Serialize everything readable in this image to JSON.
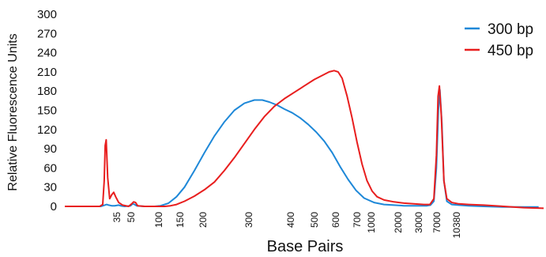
{
  "chart_data": {
    "type": "line",
    "xlabel": "Base Pairs",
    "ylabel": "Relative Fluorescence Units",
    "ylim": [
      0,
      300
    ],
    "yticks": [
      0,
      30,
      60,
      90,
      120,
      150,
      180,
      210,
      240,
      270,
      300
    ],
    "xticks": [
      "35",
      "50",
      "100",
      "150",
      "200",
      "300",
      "400",
      "500",
      "600",
      "700",
      "1000",
      "2000",
      "3000",
      "7000",
      "10380"
    ],
    "grid": false,
    "legend_position": "top-right",
    "series": [
      {
        "name": "300 bp",
        "color": "#1e88d8",
        "points": [
          [
            0,
            0
          ],
          [
            1,
            0
          ],
          [
            2,
            0
          ],
          [
            3,
            0
          ],
          [
            3.6,
            0
          ],
          [
            4.0,
            2
          ],
          [
            4.2,
            3
          ],
          [
            4.4,
            2
          ],
          [
            4.7,
            1
          ],
          [
            5.0,
            1
          ],
          [
            5.4,
            2
          ],
          [
            5.6,
            1
          ],
          [
            6.0,
            0
          ],
          [
            6.6,
            1
          ],
          [
            6.8,
            4
          ],
          [
            7.0,
            3
          ],
          [
            7.2,
            1
          ],
          [
            8.0,
            0
          ],
          [
            9.0,
            0
          ],
          [
            9.6,
            1
          ],
          [
            10.4,
            5
          ],
          [
            11.2,
            15
          ],
          [
            12.0,
            30
          ],
          [
            13.0,
            56
          ],
          [
            14.0,
            84
          ],
          [
            15.0,
            110
          ],
          [
            16.0,
            132
          ],
          [
            17.0,
            150
          ],
          [
            18.0,
            161
          ],
          [
            19.0,
            166
          ],
          [
            19.8,
            166
          ],
          [
            20.5,
            163
          ],
          [
            21.3,
            158
          ],
          [
            22.0,
            152
          ],
          [
            22.8,
            146
          ],
          [
            23.6,
            138
          ],
          [
            24.4,
            128
          ],
          [
            25.2,
            116
          ],
          [
            26.0,
            102
          ],
          [
            26.8,
            84
          ],
          [
            27.6,
            62
          ],
          [
            28.4,
            42
          ],
          [
            29.2,
            25
          ],
          [
            30.0,
            13
          ],
          [
            31.0,
            6
          ],
          [
            32.0,
            3
          ],
          [
            33.0,
            2
          ],
          [
            34.0,
            1
          ],
          [
            35.0,
            1
          ],
          [
            36.3,
            1
          ],
          [
            36.65,
            2
          ],
          [
            37.0,
            8
          ],
          [
            37.25,
            60
          ],
          [
            37.45,
            150
          ],
          [
            37.6,
            182
          ],
          [
            37.8,
            130
          ],
          [
            38.0,
            40
          ],
          [
            38.3,
            8
          ],
          [
            38.8,
            3
          ],
          [
            39.5,
            2
          ],
          [
            40.5,
            1
          ],
          [
            42.0,
            0
          ],
          [
            44.0,
            -1
          ],
          [
            46.0,
            -1
          ],
          [
            47.5,
            -1
          ]
        ]
      },
      {
        "name": "450 bp",
        "color": "#e81e1e",
        "points": [
          [
            0,
            0
          ],
          [
            1,
            0
          ],
          [
            2,
            0
          ],
          [
            3,
            0
          ],
          [
            3.5,
            0
          ],
          [
            3.8,
            3
          ],
          [
            3.95,
            40
          ],
          [
            4.05,
            95
          ],
          [
            4.15,
            104
          ],
          [
            4.3,
            45
          ],
          [
            4.5,
            12
          ],
          [
            4.7,
            18
          ],
          [
            4.9,
            22
          ],
          [
            5.1,
            15
          ],
          [
            5.4,
            6
          ],
          [
            5.8,
            2
          ],
          [
            6.4,
            0
          ],
          [
            6.7,
            4
          ],
          [
            6.9,
            7
          ],
          [
            7.1,
            6
          ],
          [
            7.3,
            1
          ],
          [
            8.0,
            0
          ],
          [
            9.0,
            0
          ],
          [
            10.0,
            0
          ],
          [
            10.6,
            1
          ],
          [
            11.2,
            3
          ],
          [
            12.0,
            8
          ],
          [
            13.0,
            16
          ],
          [
            14.0,
            26
          ],
          [
            15.0,
            38
          ],
          [
            16.0,
            56
          ],
          [
            17.0,
            76
          ],
          [
            18.0,
            98
          ],
          [
            19.0,
            120
          ],
          [
            20.0,
            140
          ],
          [
            21.0,
            156
          ],
          [
            22.0,
            168
          ],
          [
            23.0,
            178
          ],
          [
            24.0,
            188
          ],
          [
            25.0,
            198
          ],
          [
            26.0,
            206
          ],
          [
            26.5,
            210
          ],
          [
            27.0,
            212
          ],
          [
            27.4,
            210
          ],
          [
            27.8,
            200
          ],
          [
            28.3,
            172
          ],
          [
            28.8,
            138
          ],
          [
            29.3,
            100
          ],
          [
            29.8,
            66
          ],
          [
            30.3,
            40
          ],
          [
            30.8,
            24
          ],
          [
            31.3,
            15
          ],
          [
            32.0,
            10
          ],
          [
            33.0,
            7
          ],
          [
            34.0,
            5
          ],
          [
            35.0,
            4
          ],
          [
            36.0,
            3
          ],
          [
            36.6,
            3
          ],
          [
            37.0,
            12
          ],
          [
            37.25,
            80
          ],
          [
            37.42,
            172
          ],
          [
            37.55,
            188
          ],
          [
            37.75,
            140
          ],
          [
            38.0,
            40
          ],
          [
            38.3,
            12
          ],
          [
            38.8,
            6
          ],
          [
            39.5,
            4
          ],
          [
            40.5,
            3
          ],
          [
            42.0,
            2
          ],
          [
            44.0,
            0
          ],
          [
            46.0,
            -2
          ],
          [
            48.0,
            -3
          ]
        ]
      }
    ]
  }
}
